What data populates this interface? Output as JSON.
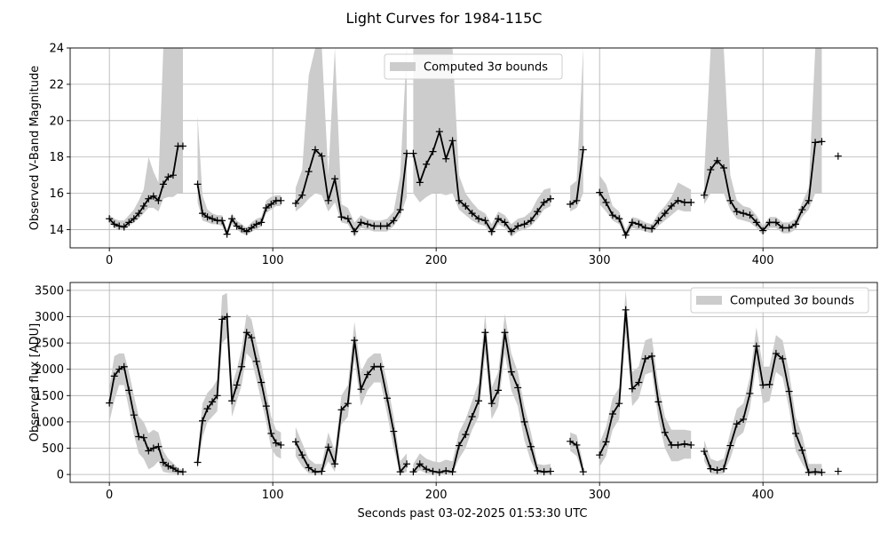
{
  "figure": {
    "title": "Light Curves for 1984-115C",
    "xlabel": "Seconds past 03-02-2025 01:53:30 UTC"
  },
  "colors": {
    "band": "#cccccc",
    "line": "#000000",
    "grid": "#b0b0b0",
    "axes": "#000000"
  },
  "chart_data": [
    {
      "type": "line",
      "ylabel": "Observed V-Band Magnitude",
      "legend": {
        "label": "Computed 3σ bounds",
        "position": "upper-center"
      },
      "xlim": [
        -24,
        470
      ],
      "ylim": [
        13.0,
        24.0
      ],
      "xticks": [
        0,
        100,
        200,
        300,
        400
      ],
      "yticks": [
        14,
        16,
        18,
        20,
        22,
        24
      ],
      "grid": true,
      "segments": [
        {
          "x": [
            0,
            3,
            6,
            9,
            12,
            15,
            18,
            21,
            24,
            27,
            30,
            33,
            36,
            39,
            42,
            45
          ],
          "y": [
            14.6,
            14.3,
            14.2,
            14.15,
            14.4,
            14.6,
            14.9,
            15.3,
            15.7,
            15.85,
            15.6,
            16.5,
            16.9,
            17.0,
            18.6,
            18.6
          ],
          "lower": [
            14.4,
            14.1,
            14.0,
            14.0,
            14.2,
            14.4,
            14.6,
            14.9,
            15.2,
            15.2,
            15.0,
            15.7,
            15.8,
            15.8,
            16.0,
            16.0
          ],
          "upper": [
            14.8,
            14.6,
            14.5,
            14.5,
            14.8,
            15.1,
            15.6,
            16.2,
            18.0,
            17.2,
            16.6,
            24.0,
            24.0,
            24.0,
            24.0,
            24.0
          ]
        },
        {
          "x": [
            54,
            57,
            60,
            63,
            66,
            69,
            72,
            75,
            78,
            81,
            84,
            87,
            90,
            93,
            96,
            99,
            102,
            105
          ],
          "y": [
            16.5,
            14.9,
            14.7,
            14.6,
            14.5,
            14.5,
            13.75,
            14.6,
            14.2,
            14.05,
            13.9,
            14.1,
            14.3,
            14.4,
            15.2,
            15.4,
            15.6,
            15.6
          ],
          "lower": [
            15.5,
            14.5,
            14.4,
            14.3,
            14.3,
            14.2,
            13.6,
            14.3,
            14.0,
            13.8,
            13.7,
            13.9,
            14.0,
            14.2,
            14.9,
            15.1,
            15.3,
            15.3
          ],
          "upper": [
            20.3,
            15.9,
            15.1,
            14.9,
            14.8,
            14.8,
            14.0,
            14.9,
            14.5,
            14.3,
            14.1,
            14.4,
            14.6,
            14.7,
            15.6,
            15.8,
            15.9,
            15.9
          ]
        },
        {
          "x": [
            114,
            118,
            122,
            126,
            130,
            134,
            138,
            142,
            146,
            150,
            154,
            158,
            162,
            166,
            170,
            174,
            178,
            182
          ],
          "y": [
            15.45,
            15.9,
            17.2,
            18.4,
            18.05,
            15.6,
            16.8,
            14.7,
            14.6,
            13.9,
            14.4,
            14.3,
            14.2,
            14.2,
            14.2,
            14.5,
            15.1,
            18.2
          ],
          "lower": [
            15.0,
            15.3,
            15.7,
            16.0,
            15.9,
            15.0,
            15.5,
            14.4,
            14.3,
            13.6,
            14.1,
            14.0,
            13.9,
            13.9,
            13.9,
            14.2,
            14.7,
            15.8
          ],
          "upper": [
            16.3,
            17.3,
            22.5,
            24.0,
            24.0,
            17.0,
            24.0,
            15.4,
            15.2,
            14.4,
            14.8,
            14.6,
            14.5,
            14.5,
            14.6,
            15.0,
            17.0,
            24.0
          ]
        },
        {
          "x": [
            186,
            190,
            194,
            198,
            202,
            206,
            210,
            214,
            218,
            222,
            226,
            230,
            234,
            238,
            242,
            246,
            250,
            254,
            258,
            262,
            266,
            270
          ],
          "y": [
            18.2,
            16.6,
            17.6,
            18.3,
            19.4,
            17.9,
            18.9,
            15.6,
            15.3,
            14.9,
            14.6,
            14.5,
            13.9,
            14.6,
            14.4,
            13.9,
            14.2,
            14.3,
            14.5,
            15.0,
            15.5,
            15.7
          ],
          "lower": [
            16.0,
            15.5,
            15.8,
            16.0,
            16.0,
            15.9,
            16.0,
            15.1,
            14.8,
            14.5,
            14.3,
            14.2,
            13.6,
            14.3,
            14.1,
            13.6,
            13.9,
            14.0,
            14.2,
            14.6,
            15.1,
            15.3
          ],
          "upper": [
            24.0,
            24.0,
            24.0,
            24.0,
            24.0,
            24.0,
            24.0,
            17.0,
            16.0,
            15.5,
            15.1,
            14.9,
            14.3,
            15.0,
            14.8,
            14.3,
            14.6,
            14.7,
            15.0,
            15.7,
            16.2,
            16.3
          ]
        },
        {
          "x": [
            282,
            286,
            290
          ],
          "y": [
            15.4,
            15.6,
            18.4
          ],
          "lower": [
            15.0,
            15.2,
            16.0
          ],
          "upper": [
            16.4,
            16.7,
            24.0
          ]
        },
        {
          "x": [
            300,
            304,
            308,
            312,
            316,
            320,
            324,
            328,
            332,
            336,
            340,
            344,
            348,
            352,
            356
          ],
          "y": [
            16.05,
            15.5,
            14.8,
            14.6,
            13.7,
            14.4,
            14.3,
            14.1,
            14.05,
            14.5,
            14.9,
            15.3,
            15.6,
            15.5,
            15.5
          ],
          "lower": [
            15.4,
            15.0,
            14.5,
            14.3,
            13.5,
            14.1,
            14.0,
            13.9,
            13.8,
            14.2,
            14.5,
            14.8,
            15.1,
            15.0,
            15.0
          ],
          "upper": [
            17.0,
            16.5,
            15.3,
            15.0,
            14.0,
            14.7,
            14.6,
            14.4,
            14.3,
            14.9,
            15.3,
            15.8,
            16.6,
            16.4,
            16.2
          ]
        },
        {
          "x": [
            364,
            368,
            372,
            376,
            380,
            384,
            388,
            392,
            396,
            400,
            404,
            408,
            412,
            416,
            420,
            424,
            428,
            432,
            436
          ],
          "y": [
            15.9,
            17.3,
            17.8,
            17.4,
            15.6,
            15.0,
            14.9,
            14.8,
            14.4,
            13.95,
            14.4,
            14.4,
            14.1,
            14.1,
            14.3,
            15.1,
            15.6,
            18.8,
            18.85
          ],
          "lower": [
            15.4,
            16.0,
            16.0,
            16.0,
            15.1,
            14.6,
            14.5,
            14.4,
            14.1,
            13.7,
            14.1,
            14.1,
            13.8,
            13.8,
            14.0,
            14.7,
            15.1,
            16.0,
            16.0
          ],
          "upper": [
            17.0,
            24.0,
            24.0,
            24.0,
            17.0,
            15.6,
            15.3,
            15.2,
            14.8,
            14.2,
            14.7,
            14.7,
            14.4,
            14.4,
            14.6,
            15.5,
            16.3,
            24.0,
            24.0
          ]
        }
      ],
      "isolated_points": [
        {
          "x": 446,
          "y": 18.05
        }
      ]
    },
    {
      "type": "line",
      "ylabel": "Observed flux [ADU]",
      "legend": {
        "label": "Computed 3σ bounds",
        "position": "upper-right"
      },
      "xlim": [
        -24,
        470
      ],
      "ylim": [
        -150,
        3650
      ],
      "xticks": [
        0,
        100,
        200,
        300,
        400
      ],
      "yticks": [
        0,
        500,
        1000,
        1500,
        2000,
        2500,
        3000,
        3500
      ],
      "grid": true,
      "segments": [
        {
          "x": [
            0,
            3,
            6,
            9,
            12,
            15,
            18,
            21,
            24,
            27,
            30,
            33,
            36,
            39,
            42,
            45
          ],
          "y": [
            1360,
            1870,
            2000,
            2050,
            1600,
            1130,
            720,
            700,
            450,
            500,
            530,
            230,
            160,
            120,
            60,
            50
          ],
          "lower": [
            1000,
            1400,
            1700,
            1700,
            1250,
            750,
            400,
            300,
            100,
            150,
            250,
            50,
            30,
            20,
            10,
            10
          ],
          "upper": [
            1650,
            2250,
            2300,
            2300,
            1950,
            1500,
            1100,
            1000,
            780,
            850,
            800,
            450,
            300,
            220,
            120,
            90
          ]
        },
        {
          "x": [
            54,
            57,
            60,
            63,
            66,
            69,
            72,
            75,
            78,
            81,
            84,
            87,
            90,
            93,
            96,
            99,
            102,
            105
          ],
          "y": [
            230,
            1020,
            1250,
            1380,
            1500,
            2950,
            3000,
            1400,
            1700,
            2050,
            2700,
            2600,
            2150,
            1750,
            1300,
            780,
            600,
            560
          ],
          "lower": [
            100,
            700,
            1000,
            1100,
            1200,
            2500,
            2600,
            1100,
            1400,
            1700,
            2300,
            2200,
            1800,
            1400,
            1000,
            500,
            350,
            300
          ],
          "upper": [
            400,
            1350,
            1550,
            1650,
            1800,
            3400,
            3450,
            1700,
            2000,
            2400,
            3050,
            2950,
            2500,
            2100,
            1600,
            1100,
            850,
            800
          ]
        },
        {
          "x": [
            114,
            118,
            122,
            126,
            130,
            134,
            138,
            142,
            146,
            150,
            154,
            158,
            162,
            166,
            170,
            174,
            178,
            182
          ],
          "y": [
            620,
            370,
            130,
            50,
            60,
            520,
            200,
            1230,
            1350,
            2550,
            1620,
            1900,
            2050,
            2050,
            1450,
            820,
            50,
            200
          ],
          "lower": [
            350,
            150,
            20,
            10,
            10,
            250,
            50,
            950,
            1100,
            2200,
            1300,
            1600,
            1750,
            1750,
            1150,
            500,
            10,
            50
          ],
          "upper": [
            900,
            600,
            300,
            200,
            200,
            800,
            450,
            1500,
            1700,
            2900,
            1950,
            2200,
            2300,
            2300,
            1750,
            1100,
            250,
            400
          ]
        },
        {
          "x": [
            186,
            190,
            194,
            198,
            202,
            206,
            210,
            214,
            218,
            222,
            226,
            230,
            234,
            238,
            242,
            246,
            250,
            254,
            258,
            262,
            266,
            270
          ],
          "y": [
            50,
            200,
            100,
            60,
            40,
            70,
            50,
            550,
            760,
            1100,
            1400,
            2700,
            1350,
            1600,
            2700,
            1950,
            1650,
            1000,
            530,
            70,
            50,
            60
          ],
          "lower": [
            10,
            80,
            20,
            10,
            10,
            10,
            10,
            300,
            500,
            850,
            1100,
            2300,
            1050,
            1300,
            2300,
            1600,
            1300,
            650,
            250,
            20,
            10,
            10
          ],
          "upper": [
            200,
            400,
            300,
            250,
            230,
            280,
            250,
            800,
            1050,
            1400,
            1750,
            3050,
            1650,
            1950,
            3050,
            2300,
            1950,
            1300,
            800,
            200,
            180,
            200
          ]
        },
        {
          "x": [
            282,
            286,
            290
          ],
          "y": [
            630,
            560,
            50
          ],
          "lower": [
            450,
            350,
            10
          ],
          "upper": [
            800,
            750,
            200
          ]
        },
        {
          "x": [
            300,
            304,
            308,
            312,
            316,
            320,
            324,
            328,
            332,
            336,
            340,
            344,
            348,
            352,
            356
          ],
          "y": [
            370,
            620,
            1150,
            1350,
            3130,
            1630,
            1750,
            2200,
            2250,
            1380,
            800,
            560,
            560,
            580,
            560
          ],
          "lower": [
            150,
            350,
            850,
            1050,
            2700,
            1300,
            1450,
            1900,
            1950,
            1050,
            500,
            250,
            250,
            300,
            300
          ],
          "upper": [
            600,
            900,
            1450,
            1650,
            3500,
            1950,
            2050,
            2550,
            2600,
            1700,
            1100,
            850,
            850,
            850,
            830
          ]
        },
        {
          "x": [
            364,
            368,
            372,
            376,
            380,
            384,
            388,
            392,
            396,
            400,
            404,
            408,
            412,
            416,
            420,
            424,
            428,
            432,
            436
          ],
          "y": [
            440,
            110,
            80,
            110,
            550,
            960,
            1050,
            1540,
            2440,
            1700,
            1710,
            2300,
            2200,
            1580,
            780,
            460,
            40,
            50,
            40
          ],
          "lower": [
            250,
            20,
            10,
            20,
            300,
            700,
            800,
            1250,
            2100,
            1350,
            1400,
            1950,
            1850,
            1250,
            450,
            200,
            10,
            10,
            10
          ],
          "upper": [
            650,
            300,
            250,
            300,
            800,
            1250,
            1350,
            1850,
            2800,
            2050,
            2050,
            2650,
            2550,
            1950,
            1100,
            750,
            200,
            200,
            200
          ]
        }
      ],
      "isolated_points": [
        {
          "x": 446,
          "y": 60
        }
      ]
    }
  ]
}
